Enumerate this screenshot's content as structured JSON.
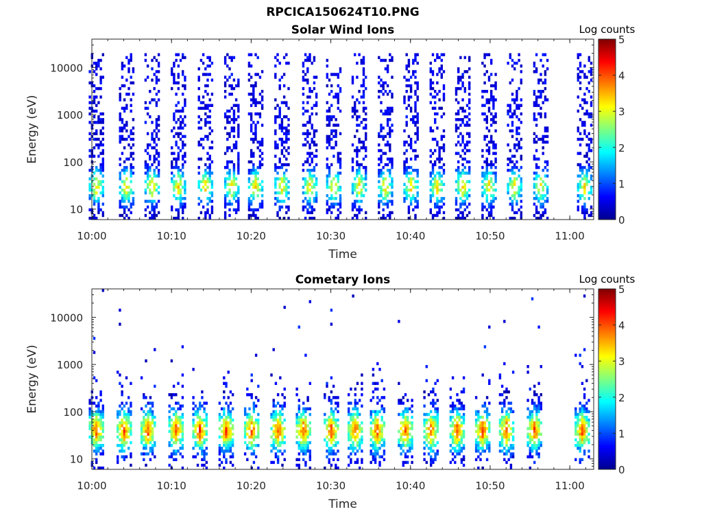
{
  "figure": {
    "title": "RPCICA150624T10.PNG"
  },
  "chart_data": [
    {
      "type": "heatmap",
      "title": "Solar Wind Ions",
      "xlabel": "Time",
      "ylabel": "Energy (eV)",
      "x_ticks": [
        "10:00",
        "10:10",
        "10:20",
        "10:30",
        "10:40",
        "10:50",
        "11:00"
      ],
      "y_ticks": [
        "10",
        "100",
        "1000",
        "10000"
      ],
      "y_scale": "log",
      "xlim": [
        "10:00",
        "11:03"
      ],
      "ylim": [
        6,
        40000
      ],
      "colorbar": {
        "label": "Log counts",
        "ticks": [
          "0",
          "1",
          "2",
          "3",
          "4",
          "5"
        ],
        "range": [
          0,
          5
        ],
        "colormap": "jet"
      },
      "measurement_sweeps": {
        "times": [
          "10:00.5",
          "10:04.3",
          "10:07.5",
          "10:10.8",
          "10:14.2",
          "10:17.5",
          "10:20.5",
          "10:23.8",
          "10:27.3",
          "10:30.3",
          "10:33.5",
          "10:36.8",
          "10:40.0",
          "10:43.3",
          "10:46.5",
          "10:49.8",
          "10:53.0",
          "10:56.3",
          "11:01.8"
        ],
        "sweep_width_minutes": 1.8,
        "peak_log_counts": 3.1,
        "peak_energy_eV": 30,
        "background_energy_range_eV": [
          6,
          20000
        ]
      }
    },
    {
      "type": "heatmap",
      "title": "Cometary Ions",
      "xlabel": "Time",
      "ylabel": "Energy (eV)",
      "x_ticks": [
        "10:00",
        "10:10",
        "10:20",
        "10:30",
        "10:40",
        "10:50",
        "11:00"
      ],
      "y_ticks": [
        "10",
        "100",
        "1000",
        "10000"
      ],
      "y_scale": "log",
      "xlim": [
        "10:00",
        "11:03"
      ],
      "ylim": [
        6,
        40000
      ],
      "colorbar": {
        "label": "Log counts",
        "ticks": [
          "0",
          "1",
          "2",
          "3",
          "4",
          "5"
        ],
        "range": [
          0,
          5
        ],
        "colormap": "jet"
      },
      "measurement_sweeps": {
        "times": [
          "10:00.5",
          "10:04.0",
          "10:07.0",
          "10:10.5",
          "10:13.5",
          "10:16.8",
          "10:20.0",
          "10:23.3",
          "10:26.5",
          "10:30.0",
          "10:33.0",
          "10:35.8",
          "10:39.3",
          "10:42.5",
          "10:45.8",
          "10:49.0",
          "10:52.0",
          "10:55.5",
          "11:01.5"
        ],
        "sweep_width_minutes": 1.8,
        "peak_log_counts": 3.6,
        "peak_energy_eV": 40,
        "background_energy_range_eV": [
          6,
          1000
        ]
      }
    }
  ]
}
